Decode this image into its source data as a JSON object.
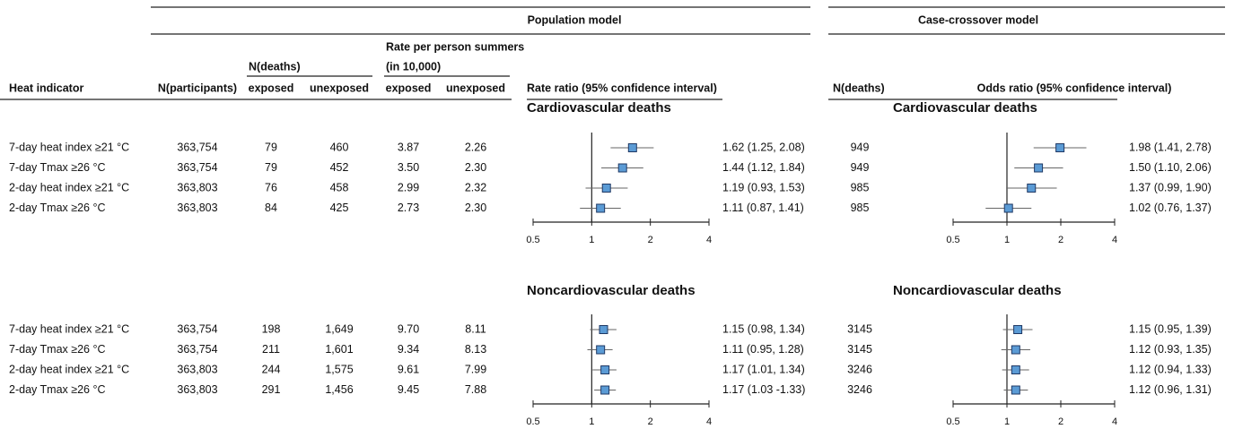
{
  "header": {
    "population_model": "Population model",
    "case_crossover_model": "Case-crossover model",
    "rate_header": "Rate per person summers",
    "rate_unit": "(in 10,000)",
    "n_deaths": "N(deaths)",
    "columns": [
      "Heat indicator",
      "N(participants)",
      "exposed",
      "unexposed",
      "exposed",
      "unexposed",
      "Rate ratio (95% confidence interval)",
      "N(deaths)",
      "Odds ratio (95% confidence interval)"
    ]
  },
  "axis": {
    "xlim": [
      0.5,
      4
    ],
    "xticks": [
      0.5,
      1,
      2,
      4
    ],
    "log_scale": true,
    "reference": 1,
    "marker_color": "#5b9bd5"
  },
  "sections": [
    {
      "population_title": "Cardiovascular deaths",
      "case_crossover_title": "Cardiovascular deaths",
      "rows": [
        {
          "cells": [
            "7-day heat index ≥21 °C",
            "363,754",
            "79",
            "460",
            "3.87",
            "2.26"
          ],
          "rate_ratio": 1.62,
          "rr_ci": [
            1.25,
            2.08
          ],
          "rr_label": "1.62 (1.25, 2.08)",
          "cc_deaths": "949",
          "odds_ratio": 1.98,
          "or_ci": [
            1.41,
            2.78
          ],
          "or_label": "1.98 (1.41, 2.78)"
        },
        {
          "cells": [
            "7-day Tmax ≥26 °C",
            "363,754",
            "79",
            "452",
            "3.50",
            "2.30"
          ],
          "rate_ratio": 1.44,
          "rr_ci": [
            1.12,
            1.84
          ],
          "rr_label": "1.44 (1.12, 1.84)",
          "cc_deaths": "949",
          "odds_ratio": 1.5,
          "or_ci": [
            1.1,
            2.06
          ],
          "or_label": "1.50 (1.10, 2.06)"
        },
        {
          "cells": [
            "2-day heat index ≥21 °C",
            "363,803",
            "76",
            "458",
            "2.99",
            "2.32"
          ],
          "rate_ratio": 1.19,
          "rr_ci": [
            0.93,
            1.53
          ],
          "rr_label": "1.19 (0.93, 1.53)",
          "cc_deaths": "985",
          "odds_ratio": 1.37,
          "or_ci": [
            0.99,
            1.9
          ],
          "or_label": "1.37 (0.99, 1.90)"
        },
        {
          "cells": [
            "2-day Tmax ≥26 °C",
            "363,803",
            "84",
            "425",
            "2.73",
            "2.30"
          ],
          "rate_ratio": 1.11,
          "rr_ci": [
            0.87,
            1.41
          ],
          "rr_label": "1.11 (0.87, 1.41)",
          "cc_deaths": "985",
          "odds_ratio": 1.02,
          "or_ci": [
            0.76,
            1.37
          ],
          "or_label": "1.02 (0.76, 1.37)"
        }
      ]
    },
    {
      "population_title": "Noncardiovascular deaths",
      "case_crossover_title": "Noncardiovascular deaths",
      "rows": [
        {
          "cells": [
            "7-day heat index ≥21 °C",
            "363,754",
            "198",
            "1,649",
            "9.70",
            "8.11"
          ],
          "rate_ratio": 1.15,
          "rr_ci": [
            0.98,
            1.34
          ],
          "rr_label": "1.15 (0.98, 1.34)",
          "cc_deaths": "3145",
          "odds_ratio": 1.15,
          "or_ci": [
            0.95,
            1.39
          ],
          "or_label": "1.15 (0.95, 1.39)"
        },
        {
          "cells": [
            "7-day Tmax ≥26 °C",
            "363,754",
            "211",
            "1,601",
            "9.34",
            "8.13"
          ],
          "rate_ratio": 1.11,
          "rr_ci": [
            0.95,
            1.28
          ],
          "rr_label": "1.11 (0.95, 1.28)",
          "cc_deaths": "3145",
          "odds_ratio": 1.12,
          "or_ci": [
            0.93,
            1.35
          ],
          "or_label": "1.12 (0.93, 1.35)"
        },
        {
          "cells": [
            "2-day heat index ≥21 °C",
            "363,803",
            "244",
            "1,575",
            "9.61",
            "7.99"
          ],
          "rate_ratio": 1.17,
          "rr_ci": [
            1.01,
            1.34
          ],
          "rr_label": "1.17 (1.01, 1.34)",
          "cc_deaths": "3246",
          "odds_ratio": 1.12,
          "or_ci": [
            0.94,
            1.33
          ],
          "or_label": "1.12 (0.94, 1.33)"
        },
        {
          "cells": [
            "2-day Tmax ≥26 °C",
            "363,803",
            "291",
            "1,456",
            "9.45",
            "7.88"
          ],
          "rate_ratio": 1.17,
          "rr_ci": [
            1.03,
            1.33
          ],
          "rr_label": "1.17 (1.03 -1.33)",
          "cc_deaths": "3246",
          "odds_ratio": 1.12,
          "or_ci": [
            0.96,
            1.31
          ],
          "or_label": "1.12 (0.96, 1.31)"
        }
      ]
    }
  ]
}
